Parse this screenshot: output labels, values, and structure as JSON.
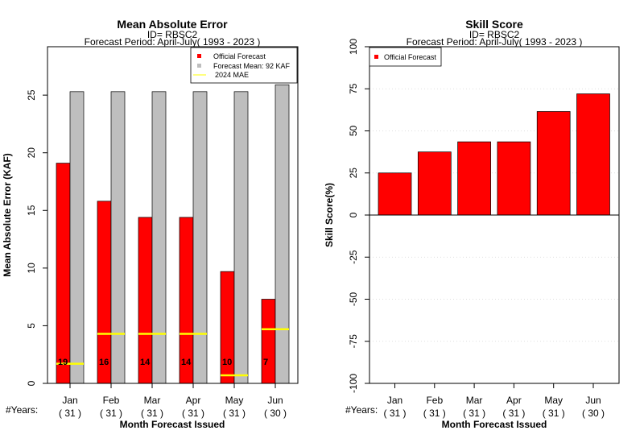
{
  "chart_data": [
    {
      "type": "bar",
      "title": "Mean Absolute Error",
      "subtitle_id": "ID= RBSC2",
      "subtitle_period": "Forecast Period: April-July( 1993 - 2023 )",
      "xlabel": "Month Forecast Issued",
      "ylabel": "Mean Absolute Error (KAF)",
      "ylim": [
        0,
        29.2
      ],
      "yticks": [
        0,
        5,
        10,
        15,
        20,
        25
      ],
      "categories": [
        "Jan",
        "Feb",
        "Mar",
        "Apr",
        "May",
        "Jun"
      ],
      "years_label": "#Years:",
      "years": [
        "( 31 )",
        "( 31 )",
        "( 31 )",
        "( 31 )",
        "( 31 )",
        "( 30 )"
      ],
      "series": [
        {
          "name": "Official Forecast",
          "color": "#ff0000",
          "values": [
            19.1,
            15.8,
            14.4,
            14.4,
            9.7,
            7.3
          ]
        },
        {
          "name": "Forecast Mean: 92 KAF",
          "color": "#bebebe",
          "values": [
            25.3,
            25.3,
            25.3,
            25.3,
            25.3,
            25.9
          ]
        },
        {
          "name": "2024  MAE",
          "color": "#ffff00",
          "values": [
            1.7,
            4.3,
            4.3,
            4.3,
            0.7,
            4.7
          ]
        }
      ],
      "data_labels": [
        "19",
        "16",
        "14",
        "14",
        "10",
        "7"
      ],
      "legend_position": "top-right",
      "grid": false
    },
    {
      "type": "bar",
      "title": "Skill Score",
      "subtitle_id": "ID= RBSC2",
      "subtitle_period": "Forecast Period: April-July( 1993 - 2023 )",
      "xlabel": "Month Forecast Issued",
      "ylabel": "Skill Score(%)",
      "ylim": [
        -100,
        100
      ],
      "yticks": [
        -100,
        -75,
        -50,
        -25,
        0,
        25,
        50,
        75,
        100
      ],
      "categories": [
        "Jan",
        "Feb",
        "Mar",
        "Apr",
        "May",
        "Jun"
      ],
      "years_label": "#Years:",
      "years": [
        "( 31 )",
        "( 31 )",
        "( 31 )",
        "( 31 )",
        "( 31 )",
        "( 30 )"
      ],
      "series": [
        {
          "name": "Official Forecast",
          "color": "#ff0000",
          "values": [
            25,
            37.5,
            43.5,
            43.5,
            61.5,
            72
          ]
        }
      ],
      "legend_position": "top-left",
      "grid": true
    }
  ]
}
